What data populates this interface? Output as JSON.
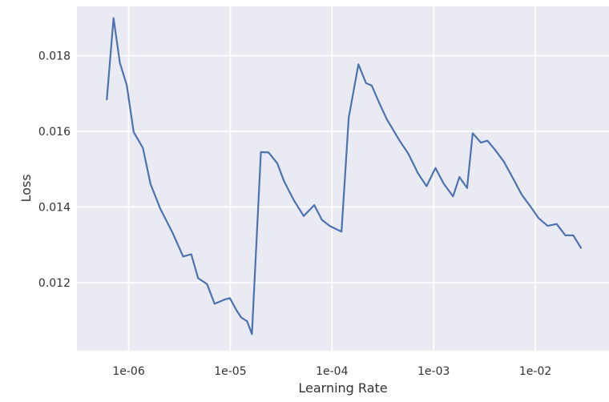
{
  "chart_data": {
    "type": "line",
    "xlabel": "Learning Rate",
    "ylabel": "Loss",
    "xscale": "log",
    "xlim": [
      3.1e-07,
      0.053
    ],
    "ylim": [
      0.0102,
      0.0193
    ],
    "grid": true,
    "colors": {
      "background": "#eaeaf2",
      "grid": "#ffffff",
      "line": "#4c72b0"
    },
    "x_ticks": [
      {
        "value": 1e-06,
        "label": "1e-06"
      },
      {
        "value": 1e-05,
        "label": "1e-05"
      },
      {
        "value": 0.0001,
        "label": "1e-04"
      },
      {
        "value": 0.001,
        "label": "1e-03"
      },
      {
        "value": 0.01,
        "label": "1e-02"
      }
    ],
    "y_ticks": [
      {
        "value": 0.012,
        "label": "0.012"
      },
      {
        "value": 0.014,
        "label": "0.014"
      },
      {
        "value": 0.016,
        "label": "0.016"
      },
      {
        "value": 0.018,
        "label": "0.018"
      }
    ],
    "series": [
      {
        "x": [
          6.1e-07,
          7.1e-07,
          8.2e-07,
          9.6e-07,
          1.12e-06,
          1.38e-06,
          1.64e-06,
          2.05e-06,
          2.71e-06,
          3.43e-06,
          4.13e-06,
          4.82e-06,
          5.9e-06,
          7e-06,
          8.7e-06,
          9.9e-06,
          1.15e-05,
          1.28e-05,
          1.46e-05,
          1.63e-05,
          2e-05,
          2.38e-05,
          2.9e-05,
          3.39e-05,
          4.23e-05,
          5.27e-05,
          6.7e-05,
          7.95e-05,
          9.59e-05,
          0.000124,
          0.000146,
          0.000182,
          0.000216,
          0.000246,
          0.000289,
          0.000344,
          0.000462,
          0.000566,
          0.0007,
          0.00085,
          0.00104,
          0.00126,
          0.00155,
          0.00179,
          0.00213,
          0.00242,
          0.00291,
          0.00338,
          0.00404,
          0.00489,
          0.00599,
          0.00732,
          0.0089,
          0.0108,
          0.0132,
          0.0162,
          0.0197,
          0.0236,
          0.0281
        ],
        "y": [
          0.01684,
          0.01899,
          0.01781,
          0.01721,
          0.01598,
          0.01556,
          0.01461,
          0.01395,
          0.01331,
          0.01269,
          0.01275,
          0.01212,
          0.01196,
          0.01144,
          0.01155,
          0.01159,
          0.01127,
          0.01108,
          0.01098,
          0.01064,
          0.01545,
          0.01544,
          0.01515,
          0.01467,
          0.01417,
          0.01376,
          0.01405,
          0.01366,
          0.01349,
          0.01335,
          0.01636,
          0.01777,
          0.01727,
          0.01721,
          0.01677,
          0.01633,
          0.01575,
          0.0154,
          0.01489,
          0.01455,
          0.01503,
          0.01461,
          0.01428,
          0.01479,
          0.0145,
          0.01595,
          0.0157,
          0.01575,
          0.0155,
          0.0152,
          0.01477,
          0.01433,
          0.01402,
          0.0137,
          0.0135,
          0.01355,
          0.01325,
          0.01325,
          0.01292
        ]
      }
    ]
  }
}
